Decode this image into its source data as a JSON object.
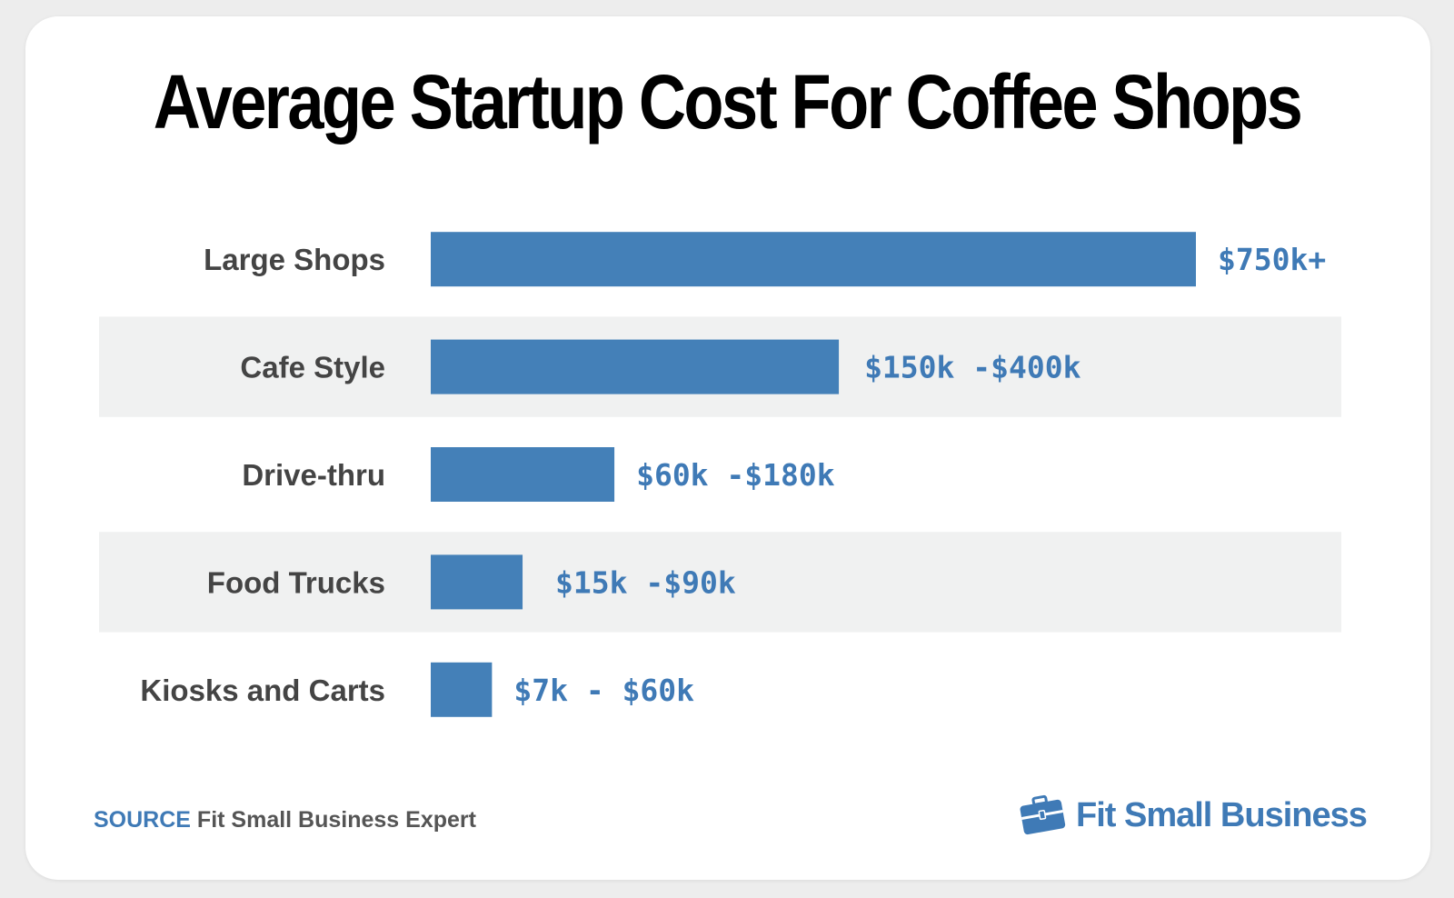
{
  "chart_data": {
    "type": "bar",
    "orientation": "horizontal",
    "title": "Average Startup Cost For Coffee Shops",
    "categories": [
      "Large Shops",
      "Cafe Style",
      "Drive-thru",
      "Food Trucks",
      "Kiosks and Carts"
    ],
    "values": [
      750,
      400,
      180,
      90,
      60
    ],
    "value_labels": [
      "$750k+",
      "$150k -$400k",
      "$60k -$180k",
      "$15k -$90k",
      "$7k - $60k"
    ],
    "xlabel": "",
    "ylabel": "",
    "grid": false,
    "colors": {
      "bar": "#4480b8",
      "label": "#3f7ab6",
      "stripe": "#f0f1f1"
    }
  },
  "source": {
    "key": "SOURCE",
    "text": "Fit Small Business Expert"
  },
  "brand": {
    "name": "Fit Small Business",
    "icon": "briefcase-icon"
  }
}
